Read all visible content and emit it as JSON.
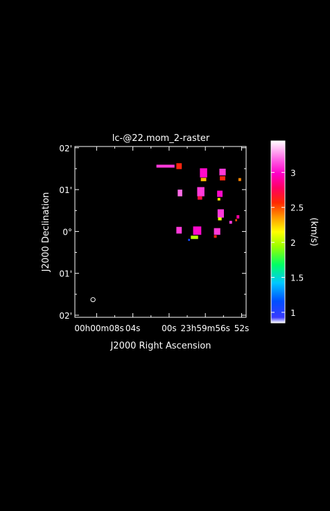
{
  "chart_data": {
    "type": "heatmap",
    "title": "lc-@22.mom_2-raster",
    "xlabel": "J2000 Right Ascension",
    "ylabel": "J2000 Declination",
    "x_ticks": [
      {
        "value": 8,
        "label": "00h00m08s"
      },
      {
        "value": 4,
        "label": "04s"
      },
      {
        "value": 0,
        "label": "00s"
      },
      {
        "value": -4,
        "label": "23h59m56s"
      },
      {
        "value": -8,
        "label": "52s"
      }
    ],
    "y_ticks": [
      {
        "value": 2,
        "label": "02'"
      },
      {
        "value": 1,
        "label": "01'"
      },
      {
        "value": 0,
        "label": "0°"
      },
      {
        "value": -1,
        "label": "01'"
      },
      {
        "value": -2,
        "label": "02'"
      }
    ],
    "xlim": [
      10.4,
      -8.5
    ],
    "ylim": [
      -2.05,
      2.03
    ],
    "colorbar": {
      "label": "(km/s)",
      "range": [
        0.85,
        3.45
      ],
      "ticks": [
        1,
        1.5,
        2,
        2.5,
        3
      ],
      "tick_labels": [
        "1",
        "1.5",
        "2",
        "2.5",
        "3"
      ]
    },
    "beam": {
      "x": 8.4,
      "y": -1.63
    },
    "pixels": [
      {
        "x": 0.4,
        "y": 1.56,
        "w": 2.0,
        "h": 0.07,
        "v": 3.1
      },
      {
        "x": -1.1,
        "y": 1.56,
        "w": 0.6,
        "h": 0.14,
        "v": 2.6
      },
      {
        "x": -3.8,
        "y": 1.4,
        "w": 0.8,
        "h": 0.22,
        "v": 3.0
      },
      {
        "x": -3.8,
        "y": 1.24,
        "w": 0.6,
        "h": 0.08,
        "v": 2.3
      },
      {
        "x": -5.9,
        "y": 1.42,
        "w": 0.7,
        "h": 0.16,
        "v": 3.1
      },
      {
        "x": -5.9,
        "y": 1.27,
        "w": 0.6,
        "h": 0.1,
        "v": 2.6
      },
      {
        "x": -7.8,
        "y": 1.24,
        "w": 0.3,
        "h": 0.07,
        "v": 2.4
      },
      {
        "x": -1.2,
        "y": 0.92,
        "w": 0.5,
        "h": 0.16,
        "v": 3.2
      },
      {
        "x": -3.5,
        "y": 0.95,
        "w": 0.8,
        "h": 0.22,
        "v": 3.1
      },
      {
        "x": -3.4,
        "y": 0.8,
        "w": 0.5,
        "h": 0.08,
        "v": 2.7
      },
      {
        "x": -5.6,
        "y": 0.9,
        "w": 0.6,
        "h": 0.15,
        "v": 3.0
      },
      {
        "x": -5.5,
        "y": 0.77,
        "w": 0.3,
        "h": 0.06,
        "v": 2.2
      },
      {
        "x": -5.7,
        "y": 0.43,
        "w": 0.7,
        "h": 0.2,
        "v": 3.1
      },
      {
        "x": -5.6,
        "y": 0.3,
        "w": 0.4,
        "h": 0.07,
        "v": 2.1
      },
      {
        "x": -7.6,
        "y": 0.35,
        "w": 0.3,
        "h": 0.08,
        "v": 2.9
      },
      {
        "x": -7.4,
        "y": 0.27,
        "w": 0.2,
        "h": 0.05,
        "v": 2.5
      },
      {
        "x": -6.8,
        "y": 0.22,
        "w": 0.3,
        "h": 0.07,
        "v": 3.1
      },
      {
        "x": -1.1,
        "y": 0.03,
        "w": 0.6,
        "h": 0.16,
        "v": 3.1
      },
      {
        "x": -3.1,
        "y": 0.02,
        "w": 0.9,
        "h": 0.2,
        "v": 3.0
      },
      {
        "x": -2.8,
        "y": -0.14,
        "w": 0.8,
        "h": 0.08,
        "v": 2.0
      },
      {
        "x": -2.2,
        "y": -0.2,
        "w": 0.2,
        "h": 0.05,
        "v": 1.1
      },
      {
        "x": -5.3,
        "y": 0.0,
        "w": 0.7,
        "h": 0.16,
        "v": 3.1
      },
      {
        "x": -5.1,
        "y": -0.12,
        "w": 0.3,
        "h": 0.06,
        "v": 2.6
      }
    ]
  }
}
